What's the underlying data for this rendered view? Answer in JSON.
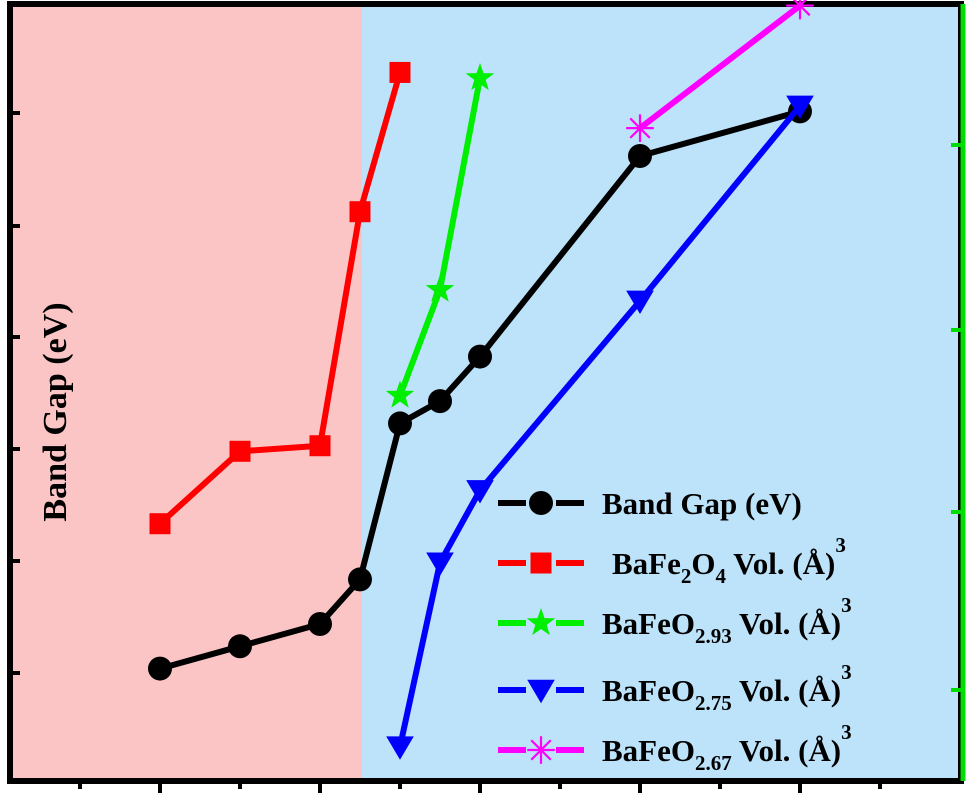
{
  "chart_data": {
    "type": "line",
    "ylabel": "Band Gap (eV)",
    "regions": [
      {
        "name": "left-region",
        "color": "#fbc5c5"
      },
      {
        "name": "right-region",
        "color": "#bde3fa"
      }
    ],
    "legend_position": "bottom-right",
    "series": [
      {
        "name": "Band Gap (eV)",
        "label_parts": [
          "Band Gap (eV)"
        ],
        "color": "#000000",
        "marker": "circle",
        "points": [
          [
            1.0,
            1.0
          ],
          [
            1.5,
            1.2
          ],
          [
            2.0,
            1.4
          ],
          [
            2.25,
            1.8
          ],
          [
            2.5,
            3.2
          ],
          [
            2.75,
            3.4
          ],
          [
            3.0,
            3.8
          ],
          [
            4.0,
            5.6
          ],
          [
            5.0,
            6.0
          ]
        ]
      },
      {
        "name": "BaFe2O4 Vol. (Å)3",
        "label_parts": [
          "BaFe",
          "2",
          "O",
          "4",
          " Vol. (Å)",
          "3"
        ],
        "color": "#ff0000",
        "marker": "square",
        "points": [
          [
            1.0,
            2.3
          ],
          [
            1.5,
            2.95
          ],
          [
            2.0,
            3.0
          ],
          [
            2.25,
            5.1
          ],
          [
            2.5,
            6.35
          ]
        ]
      },
      {
        "name": "BaFeO2.93 Vol. (Å)3",
        "label_parts": [
          "BaFeO",
          "2.93",
          " Vol. (Å)",
          "3"
        ],
        "color": "#00ee00",
        "marker": "star",
        "points": [
          [
            2.5,
            3.45
          ],
          [
            2.75,
            4.4
          ],
          [
            3.0,
            6.3
          ]
        ]
      },
      {
        "name": "BaFeO2.75 Vol. (Å)3",
        "label_parts": [
          "BaFeO",
          "2.75",
          " Vol. (Å)",
          "3"
        ],
        "color": "#0000ff",
        "marker": "triangle-down",
        "points": [
          [
            2.5,
            0.3
          ],
          [
            2.75,
            1.95
          ],
          [
            3.0,
            2.6
          ],
          [
            4.0,
            4.3
          ],
          [
            5.0,
            6.05
          ]
        ]
      },
      {
        "name": "BaFeO2.67 Vol. (Å)3",
        "label_parts": [
          "BaFeO",
          "2.67",
          " Vol. (Å)",
          "3"
        ],
        "color": "#ff00ff",
        "marker": "asterisk",
        "points": [
          [
            4.0,
            5.85
          ],
          [
            5.0,
            6.95
          ]
        ]
      }
    ]
  }
}
